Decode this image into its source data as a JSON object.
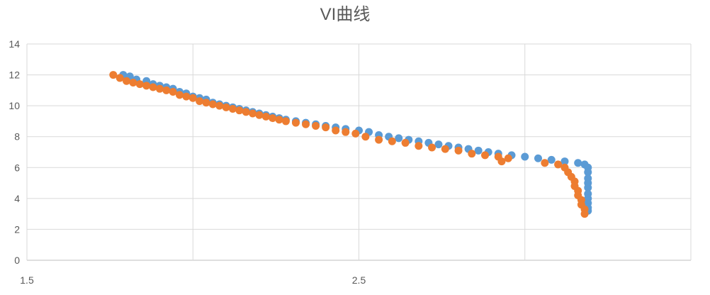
{
  "chart_data": {
    "type": "scatter",
    "title": "VI曲线",
    "xlabel": "",
    "ylabel": "",
    "xlim": [
      1.5,
      3.5
    ],
    "ylim": [
      0,
      14
    ],
    "x_ticks": [
      1.5,
      2.5
    ],
    "x_tick_labels": [
      "1.5",
      "2.5"
    ],
    "y_ticks": [
      0,
      2,
      4,
      6,
      8,
      10,
      12,
      14
    ],
    "y_tick_labels": [
      "0",
      "2",
      "4",
      "6",
      "8",
      "10",
      "12",
      "14"
    ],
    "grid": true,
    "legend": "none",
    "colors": {
      "blue": "#5b9bd5",
      "orange": "#ed7d31"
    },
    "series": [
      {
        "color": "#5b9bd5",
        "points": [
          [
            1.79,
            12.0
          ],
          [
            1.81,
            11.9
          ],
          [
            1.83,
            11.7
          ],
          [
            1.86,
            11.6
          ],
          [
            1.88,
            11.4
          ],
          [
            1.9,
            11.3
          ],
          [
            1.92,
            11.2
          ],
          [
            1.94,
            11.1
          ],
          [
            1.96,
            10.9
          ],
          [
            1.98,
            10.8
          ],
          [
            2.0,
            10.6
          ],
          [
            2.02,
            10.5
          ],
          [
            2.04,
            10.4
          ],
          [
            2.06,
            10.2
          ],
          [
            2.08,
            10.1
          ],
          [
            2.1,
            10.0
          ],
          [
            2.12,
            9.9
          ],
          [
            2.14,
            9.8
          ],
          [
            2.16,
            9.7
          ],
          [
            2.18,
            9.6
          ],
          [
            2.2,
            9.5
          ],
          [
            2.22,
            9.4
          ],
          [
            2.24,
            9.3
          ],
          [
            2.26,
            9.2
          ],
          [
            2.28,
            9.1
          ],
          [
            2.31,
            9.0
          ],
          [
            2.34,
            8.9
          ],
          [
            2.37,
            8.8
          ],
          [
            2.4,
            8.7
          ],
          [
            2.43,
            8.6
          ],
          [
            2.46,
            8.5
          ],
          [
            2.5,
            8.4
          ],
          [
            2.53,
            8.3
          ],
          [
            2.56,
            8.1
          ],
          [
            2.59,
            8.0
          ],
          [
            2.62,
            7.9
          ],
          [
            2.65,
            7.8
          ],
          [
            2.68,
            7.7
          ],
          [
            2.71,
            7.6
          ],
          [
            2.74,
            7.5
          ],
          [
            2.77,
            7.4
          ],
          [
            2.8,
            7.3
          ],
          [
            2.83,
            7.2
          ],
          [
            2.86,
            7.1
          ],
          [
            2.89,
            7.0
          ],
          [
            2.92,
            6.9
          ],
          [
            2.96,
            6.8
          ],
          [
            3.0,
            6.7
          ],
          [
            3.04,
            6.6
          ],
          [
            3.08,
            6.5
          ],
          [
            3.12,
            6.4
          ],
          [
            3.16,
            6.3
          ],
          [
            3.18,
            6.2
          ],
          [
            3.19,
            6.0
          ],
          [
            3.19,
            5.7
          ],
          [
            3.19,
            5.3
          ],
          [
            3.19,
            5.0
          ],
          [
            3.19,
            4.7
          ],
          [
            3.19,
            4.3
          ],
          [
            3.19,
            4.0
          ],
          [
            3.19,
            3.7
          ],
          [
            3.19,
            3.4
          ],
          [
            3.19,
            3.2
          ]
        ]
      },
      {
        "color": "#ed7d31",
        "points": [
          [
            1.76,
            12.0
          ],
          [
            1.78,
            11.8
          ],
          [
            1.8,
            11.6
          ],
          [
            1.82,
            11.5
          ],
          [
            1.84,
            11.4
          ],
          [
            1.86,
            11.3
          ],
          [
            1.88,
            11.2
          ],
          [
            1.9,
            11.1
          ],
          [
            1.92,
            11.0
          ],
          [
            1.94,
            10.9
          ],
          [
            1.96,
            10.7
          ],
          [
            1.98,
            10.6
          ],
          [
            2.0,
            10.5
          ],
          [
            2.02,
            10.3
          ],
          [
            2.04,
            10.2
          ],
          [
            2.06,
            10.1
          ],
          [
            2.08,
            10.0
          ],
          [
            2.1,
            9.9
          ],
          [
            2.12,
            9.8
          ],
          [
            2.14,
            9.7
          ],
          [
            2.16,
            9.6
          ],
          [
            2.18,
            9.5
          ],
          [
            2.2,
            9.4
          ],
          [
            2.22,
            9.3
          ],
          [
            2.24,
            9.2
          ],
          [
            2.26,
            9.1
          ],
          [
            2.28,
            9.0
          ],
          [
            2.31,
            8.9
          ],
          [
            2.34,
            8.8
          ],
          [
            2.37,
            8.7
          ],
          [
            2.4,
            8.6
          ],
          [
            2.43,
            8.4
          ],
          [
            2.46,
            8.3
          ],
          [
            2.49,
            8.2
          ],
          [
            2.52,
            8.0
          ],
          [
            2.56,
            7.8
          ],
          [
            2.6,
            7.7
          ],
          [
            2.64,
            7.6
          ],
          [
            2.68,
            7.4
          ],
          [
            2.72,
            7.3
          ],
          [
            2.76,
            7.2
          ],
          [
            2.8,
            7.1
          ],
          [
            2.84,
            6.9
          ],
          [
            2.88,
            6.8
          ],
          [
            2.92,
            6.7
          ],
          [
            2.93,
            6.4
          ],
          [
            2.95,
            6.6
          ],
          [
            3.06,
            6.3
          ],
          [
            3.1,
            6.2
          ],
          [
            3.12,
            6.0
          ],
          [
            3.13,
            5.7
          ],
          [
            3.14,
            5.4
          ],
          [
            3.15,
            5.1
          ],
          [
            3.15,
            4.8
          ],
          [
            3.16,
            4.5
          ],
          [
            3.16,
            4.2
          ],
          [
            3.17,
            3.9
          ],
          [
            3.17,
            3.6
          ],
          [
            3.18,
            3.3
          ],
          [
            3.18,
            3.0
          ]
        ]
      }
    ]
  }
}
